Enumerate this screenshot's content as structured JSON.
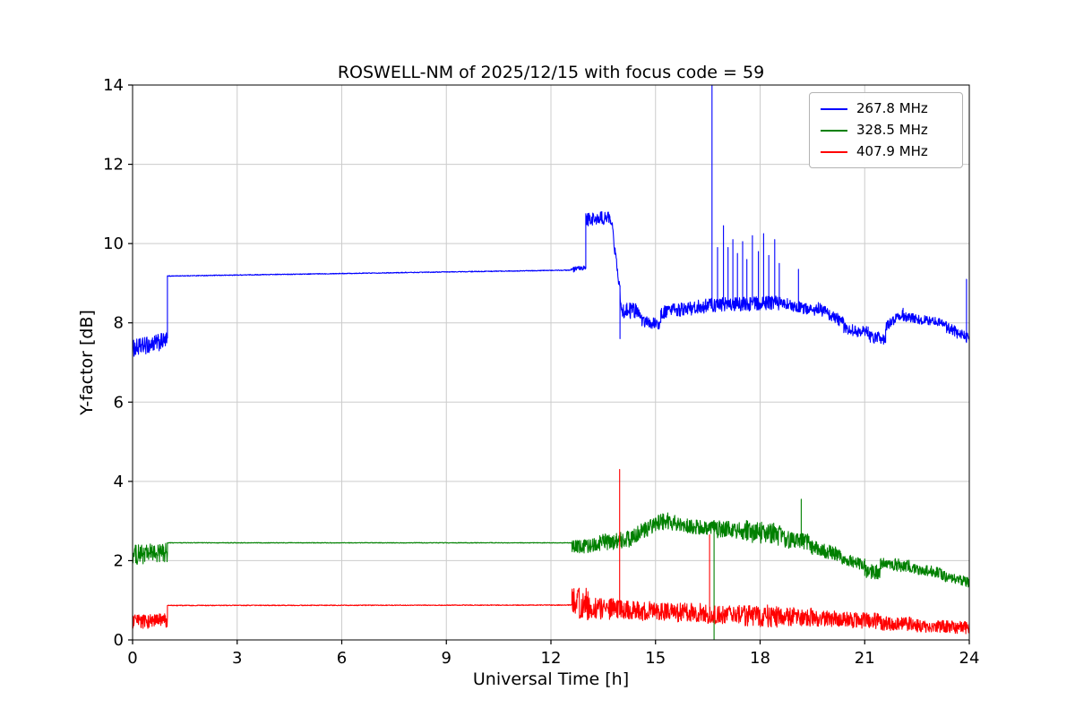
{
  "chart_data": {
    "type": "line",
    "title": "ROSWELL-NM of 2025/12/15 with focus code = 59",
    "xlabel": "Universal Time [h]",
    "ylabel": "Y-factor [dB]",
    "xlim": [
      0,
      24
    ],
    "ylim": [
      0,
      14
    ],
    "xticks": [
      0,
      3,
      6,
      9,
      12,
      15,
      18,
      21,
      24
    ],
    "yticks": [
      0,
      2,
      4,
      6,
      8,
      10,
      12,
      14
    ],
    "grid": true,
    "legend_position": "upper right",
    "series": [
      {
        "name": "267.8 MHz",
        "color": "#0000ff",
        "segments": [
          [
            0.0,
            1.0,
            7.35,
            7.55,
            0.22
          ],
          [
            1.0,
            12.58,
            9.18,
            9.33,
            0.01
          ],
          [
            12.58,
            13.0,
            9.33,
            9.38,
            0.07
          ],
          [
            13.0,
            13.75,
            10.6,
            10.65,
            0.18
          ],
          [
            13.75,
            14.05,
            10.45,
            8.25,
            0.15
          ],
          [
            14.05,
            14.6,
            8.3,
            8.3,
            0.2
          ],
          [
            14.6,
            15.15,
            8.05,
            7.95,
            0.15
          ],
          [
            15.15,
            16.6,
            8.25,
            8.45,
            0.18
          ],
          [
            16.6,
            18.6,
            8.45,
            8.5,
            0.18
          ],
          [
            18.6,
            19.6,
            8.5,
            8.3,
            0.15
          ],
          [
            19.6,
            20.4,
            8.4,
            8.0,
            0.15
          ],
          [
            20.4,
            21.1,
            7.85,
            7.75,
            0.15
          ],
          [
            21.1,
            21.6,
            7.65,
            7.6,
            0.15
          ],
          [
            21.6,
            22.1,
            7.9,
            8.25,
            0.12
          ],
          [
            22.1,
            23.3,
            8.15,
            8.0,
            0.12
          ],
          [
            23.3,
            24.0,
            7.9,
            7.6,
            0.15
          ]
        ],
        "spikes": [
          [
            13.98,
            7.6
          ],
          [
            16.62,
            14.35
          ],
          [
            16.78,
            9.9
          ],
          [
            16.95,
            10.45
          ],
          [
            17.08,
            9.9
          ],
          [
            17.22,
            10.1
          ],
          [
            17.35,
            9.75
          ],
          [
            17.5,
            10.05
          ],
          [
            17.62,
            9.6
          ],
          [
            17.78,
            10.2
          ],
          [
            17.95,
            9.8
          ],
          [
            18.1,
            10.25
          ],
          [
            18.25,
            9.7
          ],
          [
            18.42,
            10.1
          ],
          [
            18.55,
            9.5
          ],
          [
            19.1,
            9.35
          ],
          [
            23.92,
            9.1
          ]
        ]
      },
      {
        "name": "328.5 MHz",
        "color": "#008000",
        "segments": [
          [
            0.0,
            1.0,
            2.15,
            2.2,
            0.25
          ],
          [
            1.0,
            12.6,
            2.45,
            2.45,
            0.008
          ],
          [
            12.6,
            13.4,
            2.35,
            2.4,
            0.18
          ],
          [
            13.4,
            14.3,
            2.45,
            2.55,
            0.22
          ],
          [
            14.3,
            15.2,
            2.6,
            3.0,
            0.2
          ],
          [
            15.2,
            15.7,
            3.0,
            2.95,
            0.22
          ],
          [
            15.7,
            16.65,
            2.9,
            2.8,
            0.18
          ],
          [
            16.65,
            17.6,
            2.8,
            2.75,
            0.22
          ],
          [
            17.6,
            18.6,
            2.75,
            2.65,
            0.28
          ],
          [
            18.6,
            19.4,
            2.55,
            2.45,
            0.22
          ],
          [
            19.4,
            20.3,
            2.35,
            2.15,
            0.18
          ],
          [
            20.3,
            21.0,
            2.05,
            1.9,
            0.15
          ],
          [
            21.0,
            21.45,
            1.75,
            1.7,
            0.18
          ],
          [
            21.45,
            22.3,
            1.95,
            1.85,
            0.16
          ],
          [
            22.3,
            23.2,
            1.8,
            1.7,
            0.14
          ],
          [
            23.2,
            24.0,
            1.62,
            1.45,
            0.13
          ]
        ],
        "spikes": [
          [
            16.68,
            0.02
          ],
          [
            19.18,
            3.55
          ]
        ]
      },
      {
        "name": "407.9 MHz",
        "color": "#ff0000",
        "segments": [
          [
            0.0,
            1.0,
            0.45,
            0.5,
            0.18
          ],
          [
            1.0,
            12.6,
            0.87,
            0.88,
            0.01
          ],
          [
            12.6,
            13.1,
            0.95,
            0.9,
            0.4
          ],
          [
            13.1,
            14.0,
            0.8,
            0.78,
            0.28
          ],
          [
            14.0,
            15.0,
            0.75,
            0.72,
            0.25
          ],
          [
            15.0,
            16.5,
            0.7,
            0.68,
            0.24
          ],
          [
            16.5,
            17.5,
            0.65,
            0.63,
            0.24
          ],
          [
            17.5,
            18.5,
            0.62,
            0.6,
            0.28
          ],
          [
            18.5,
            19.5,
            0.6,
            0.58,
            0.24
          ],
          [
            19.5,
            20.5,
            0.55,
            0.52,
            0.2
          ],
          [
            20.5,
            21.4,
            0.5,
            0.48,
            0.2
          ],
          [
            21.4,
            22.5,
            0.42,
            0.4,
            0.18
          ],
          [
            22.5,
            24.0,
            0.36,
            0.3,
            0.16
          ]
        ],
        "spikes": [
          [
            13.97,
            4.3
          ],
          [
            16.55,
            2.65
          ]
        ]
      }
    ]
  }
}
